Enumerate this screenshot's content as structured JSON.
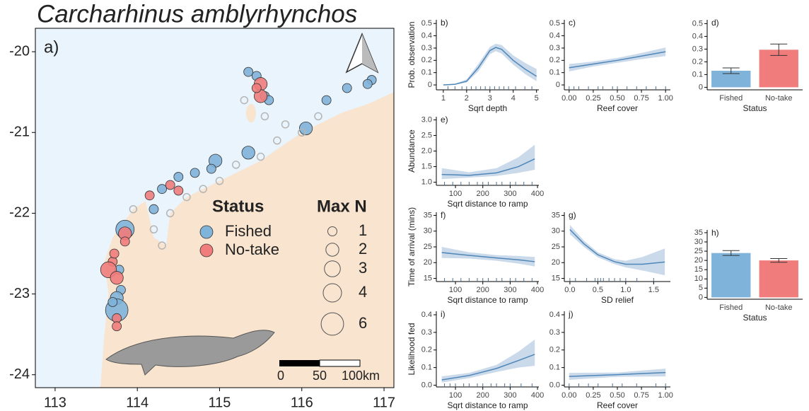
{
  "chart_data": [
    {
      "type": "map",
      "title": "Carcharhinus amblyrhynchos",
      "panel": "a)",
      "xlim": [
        112.76,
        117.12
      ],
      "ylim": [
        -24.16,
        -19.71
      ],
      "xticks": [
        113,
        114,
        115,
        116,
        117
      ],
      "yticks": [
        -20,
        -21,
        -22,
        -23,
        -24
      ],
      "legend_title": "Status",
      "series": [
        {
          "name": "Fished",
          "color": "#7fb3d9",
          "x": [
            115.35,
            115.45,
            115.55,
            115.6,
            116.85,
            116.8,
            116.55,
            116.3,
            116.05,
            115.35,
            114.95,
            114.9,
            114.7,
            114.5,
            114.3,
            114.2,
            113.85,
            113.8,
            113.75,
            113.75,
            113.7,
            113.78
          ],
          "y": [
            -20.25,
            -20.3,
            -20.55,
            -20.6,
            -20.35,
            -20.4,
            -20.45,
            -20.6,
            -20.95,
            -21.25,
            -21.35,
            -21.45,
            -21.5,
            -21.55,
            -21.7,
            -21.95,
            -22.2,
            -22.95,
            -23.05,
            -23.2,
            -23.1,
            -22.7
          ],
          "size": [
            1,
            1,
            1,
            1,
            1,
            1,
            1,
            1,
            2,
            2,
            2,
            1,
            1,
            1,
            1,
            1,
            4,
            1,
            2,
            6,
            1,
            1
          ]
        },
        {
          "name": "No-take",
          "color": "#f07c7c",
          "x": [
            115.5,
            115.5,
            115.45,
            114.15,
            114.4,
            114.5,
            113.85,
            113.85,
            113.7,
            113.65,
            113.75,
            113.75,
            113.75,
            113.72
          ],
          "y": [
            -20.4,
            -20.55,
            -20.45,
            -21.78,
            -21.65,
            -21.72,
            -22.25,
            -22.35,
            -22.6,
            -22.7,
            -22.8,
            -23.3,
            -23.4,
            -22.5
          ],
          "size": [
            2,
            2,
            1,
            1,
            1,
            1,
            2,
            1,
            1,
            3,
            2,
            1,
            1,
            1
          ]
        },
        {
          "color": "#b5b5b5",
          "x": [
            115.3,
            115.55,
            115.8,
            116.0,
            116.2,
            115.7,
            115.5,
            115.2,
            115.0,
            114.8,
            114.4,
            114.2,
            114.3,
            113.95,
            114.6
          ],
          "y": [
            -20.6,
            -20.8,
            -20.9,
            -21.0,
            -20.8,
            -21.1,
            -21.3,
            -21.4,
            -21.6,
            -21.7,
            -22.0,
            -22.2,
            -22.4,
            -21.95,
            -21.8
          ]
        }
      ],
      "size_legend": {
        "title": "Max N",
        "values": [
          1,
          2,
          3,
          4,
          6
        ]
      },
      "scale_bar": {
        "labels": [
          "0",
          "50",
          "100km"
        ]
      }
    },
    {
      "type": "line",
      "panel": "b)",
      "ylabel": "Prob. observation",
      "xlabel": "Sqrt depth",
      "xlim": [
        0.7,
        5.1
      ],
      "ylim": [
        -0.04,
        0.53
      ],
      "xticks": [
        1,
        2,
        3,
        4,
        5
      ],
      "yticks": [
        0,
        0.1,
        0.2,
        0.3,
        0.4,
        0.5
      ],
      "x": [
        1,
        1.5,
        2,
        2.5,
        3,
        3.25,
        3.5,
        4,
        4.5,
        5
      ],
      "series": [
        {
          "color": "#4f86b8",
          "values": [
            0.0,
            0.005,
            0.03,
            0.14,
            0.28,
            0.305,
            0.29,
            0.2,
            0.13,
            0.07
          ],
          "lower": [
            0.0,
            0.002,
            0.02,
            0.11,
            0.25,
            0.275,
            0.255,
            0.165,
            0.09,
            0.03
          ],
          "upper": [
            0.0,
            0.01,
            0.045,
            0.17,
            0.31,
            0.335,
            0.325,
            0.24,
            0.18,
            0.13
          ]
        }
      ],
      "rug": [
        1.2,
        1.5,
        1.8,
        2.0,
        2.2,
        2.4,
        2.6,
        2.8,
        3.0,
        3.2,
        3.4,
        3.6,
        3.8,
        4.1,
        4.5,
        4.8
      ]
    },
    {
      "type": "line",
      "panel": "c)",
      "xlabel": "Reef cover",
      "xlim": [
        -0.05,
        1.05
      ],
      "ylim": [
        -0.04,
        0.53
      ],
      "xticks": [
        {
          "value": 0,
          "label": "0.00"
        },
        {
          "value": 0.25,
          "label": "0.25"
        },
        {
          "value": 0.5,
          "label": "0.50"
        },
        {
          "value": 0.75,
          "label": "0.75"
        },
        {
          "value": 1,
          "label": "1.00"
        }
      ],
      "yticks": [
        0,
        0.1,
        0.2,
        0.3,
        0.4,
        0.5
      ],
      "x": [
        0,
        0.25,
        0.5,
        0.75,
        1
      ],
      "series": [
        {
          "color": "#4f86b8",
          "values": [
            0.14,
            0.17,
            0.2,
            0.235,
            0.27
          ],
          "lower": [
            0.11,
            0.15,
            0.18,
            0.21,
            0.235
          ],
          "upper": [
            0.17,
            0.19,
            0.22,
            0.26,
            0.305
          ]
        }
      ],
      "rug": [
        0.0,
        0.05,
        0.1,
        0.2,
        0.3,
        0.35,
        0.45,
        0.5,
        0.6,
        0.7,
        0.8,
        0.9,
        1.0
      ]
    },
    {
      "type": "bar",
      "panel": "d)",
      "xlabel": "Status",
      "ylim": [
        -0.02,
        0.53
      ],
      "yticks": [
        0,
        0.1,
        0.2,
        0.3,
        0.4,
        0.5
      ],
      "categories": [
        "Fished",
        "No-take"
      ],
      "series": [
        {
          "values": [
            0.13,
            0.295
          ],
          "errors": [
            0.022,
            0.045
          ],
          "colors": [
            "#7fb3d9",
            "#f07c7c"
          ]
        }
      ]
    },
    {
      "type": "line",
      "panel": "e)",
      "ylabel": "Abundance",
      "xlabel": "Sqrt distance to ramp",
      "xlim": [
        30,
        405
      ],
      "ylim": [
        0.9,
        3.1
      ],
      "xticks": [
        100,
        200,
        300,
        400
      ],
      "yticks": [
        {
          "value": 1,
          "label": "1.0"
        },
        {
          "value": 1.5,
          "label": "1.5"
        },
        {
          "value": 2,
          "label": "2.0"
        },
        {
          "value": 2.5,
          "label": "2.5"
        },
        {
          "value": 3,
          "label": "3.0"
        }
      ],
      "x": [
        50,
        150,
        250,
        330,
        390
      ],
      "series": [
        {
          "color": "#4f86b8",
          "values": [
            1.25,
            1.22,
            1.3,
            1.5,
            1.75
          ],
          "lower": [
            1.1,
            1.15,
            1.2,
            1.3,
            1.4
          ],
          "upper": [
            1.45,
            1.32,
            1.45,
            1.8,
            2.2
          ]
        }
      ],
      "rug": [
        60,
        90,
        120,
        150,
        180,
        200,
        220,
        250,
        270,
        300,
        320,
        350,
        380
      ]
    },
    {
      "type": "line",
      "panel": "f)",
      "ylabel": "Time of arrival (mins)",
      "xlabel": "Sqrt distance to ramp",
      "xlim": [
        30,
        405
      ],
      "ylim": [
        14,
        36
      ],
      "xticks": [
        100,
        200,
        300,
        400
      ],
      "yticks": [
        15,
        20,
        25,
        30,
        35
      ],
      "x": [
        50,
        150,
        250,
        330,
        390
      ],
      "series": [
        {
          "color": "#4f86b8",
          "values": [
            23.2,
            22.3,
            21.5,
            20.9,
            20.3
          ],
          "lower": [
            21.5,
            21.3,
            20.6,
            19.7,
            18.8
          ],
          "upper": [
            25,
            23.3,
            22.4,
            22.1,
            21.8
          ]
        }
      ],
      "rug": [
        60,
        90,
        120,
        150,
        180,
        200,
        220,
        250,
        270,
        300,
        320,
        350,
        380
      ]
    },
    {
      "type": "line",
      "panel": "g)",
      "xlabel": "SD relief",
      "xlim": [
        -0.1,
        1.8
      ],
      "ylim": [
        14,
        36
      ],
      "xticks": [
        {
          "value": 0,
          "label": "0.0"
        },
        {
          "value": 0.5,
          "label": "0.5"
        },
        {
          "value": 1,
          "label": "1.0"
        },
        {
          "value": 1.5,
          "label": "1.5"
        }
      ],
      "yticks": [
        15,
        20,
        25,
        30,
        35
      ],
      "x": [
        0,
        0.25,
        0.5,
        0.8,
        1.0,
        1.3,
        1.7
      ],
      "series": [
        {
          "color": "#4f86b8",
          "values": [
            30.5,
            26,
            22.5,
            20.3,
            19.5,
            19.5,
            20.2
          ],
          "lower": [
            29,
            25,
            21.7,
            19.5,
            18.5,
            17.5,
            16
          ],
          "upper": [
            32,
            27,
            23.3,
            21.1,
            20.6,
            21.8,
            24.5
          ]
        }
      ],
      "rug": [
        0.0,
        0.1,
        0.3,
        0.45,
        0.5,
        0.55,
        0.6,
        0.7,
        0.8,
        0.9,
        1.0,
        1.2,
        1.5
      ]
    },
    {
      "type": "bar",
      "panel": "h)",
      "xlabel": "Status",
      "ylim": [
        -1,
        36.5
      ],
      "yticks": [
        0,
        5,
        10,
        15,
        20,
        25,
        30,
        35
      ],
      "categories": [
        "Fished",
        "No-take"
      ],
      "series": [
        {
          "values": [
            24,
            20
          ],
          "errors": [
            1.3,
            1.0
          ],
          "colors": [
            "#7fb3d9",
            "#f07c7c"
          ]
        }
      ]
    },
    {
      "type": "line",
      "panel": "i)",
      "ylabel": "Likelihood fed",
      "xlabel": "Sqrt distance to ramp",
      "xlim": [
        30,
        405
      ],
      "ylim": [
        -0.01,
        0.42
      ],
      "xticks": [
        100,
        200,
        300,
        400
      ],
      "yticks": [
        {
          "value": 0,
          "label": "0.0"
        },
        0.1,
        0.2,
        0.3,
        0.4
      ],
      "x": [
        50,
        150,
        250,
        330,
        390
      ],
      "series": [
        {
          "color": "#4f86b8",
          "values": [
            0.03,
            0.055,
            0.095,
            0.14,
            0.175
          ],
          "lower": [
            0.015,
            0.04,
            0.075,
            0.1,
            0.11
          ],
          "upper": [
            0.05,
            0.07,
            0.115,
            0.19,
            0.26
          ]
        }
      ],
      "rug": [
        60,
        80,
        100,
        130,
        150,
        180,
        200,
        230,
        250,
        280,
        300,
        340,
        380
      ]
    },
    {
      "type": "line",
      "panel": "j)",
      "xlabel": "Reef cover",
      "xlim": [
        -0.05,
        1.05
      ],
      "ylim": [
        -0.01,
        0.42
      ],
      "xticks": [
        {
          "value": 0,
          "label": "0.00"
        },
        {
          "value": 0.25,
          "label": "0.25"
        },
        {
          "value": 0.5,
          "label": "0.50"
        },
        {
          "value": 0.75,
          "label": "0.75"
        },
        {
          "value": 1,
          "label": "1.00"
        }
      ],
      "yticks": [
        {
          "value": 0,
          "label": "0.0"
        },
        0.1,
        0.2,
        0.3,
        0.4
      ],
      "x": [
        0,
        0.5,
        1
      ],
      "series": [
        {
          "color": "#4f86b8",
          "values": [
            0.05,
            0.06,
            0.072
          ],
          "lower": [
            0.03,
            0.048,
            0.05
          ],
          "upper": [
            0.07,
            0.072,
            0.094
          ]
        }
      ],
      "rug": [
        0.0,
        0.1,
        0.2,
        0.3,
        0.45,
        0.55,
        0.7,
        0.9,
        1.0
      ]
    }
  ]
}
